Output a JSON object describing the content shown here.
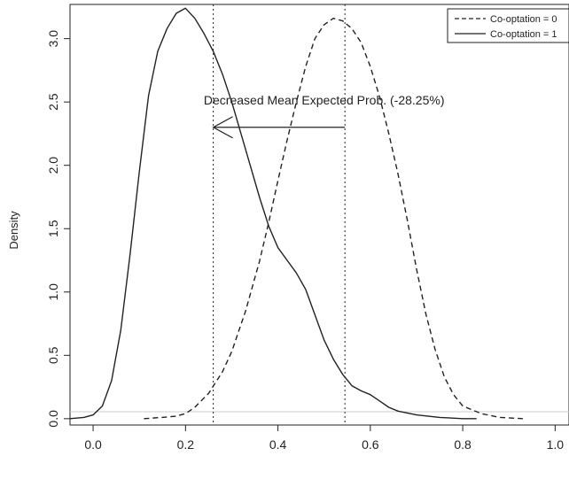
{
  "chart_data": {
    "type": "line",
    "title": "",
    "xlabel": "",
    "ylabel": "Density",
    "xlim": [
      -0.05,
      1.03
    ],
    "ylim": [
      -0.05,
      3.27
    ],
    "x_ticks": [
      "0.0",
      "0.2",
      "0.4",
      "0.6",
      "0.8",
      "1.0"
    ],
    "y_ticks": [
      "0.0",
      "0.5",
      "1.0",
      "1.5",
      "2.0",
      "2.5",
      "3.0"
    ],
    "legend": {
      "position": "top-right",
      "entries": [
        {
          "label": "Co-optation = 0",
          "linestyle": "dashed"
        },
        {
          "label": "Co-optation = 1",
          "linestyle": "solid"
        }
      ]
    },
    "series": [
      {
        "name": "Co-optation = 0",
        "linestyle": "dashed",
        "x": [
          0.11,
          0.15,
          0.18,
          0.2,
          0.22,
          0.25,
          0.28,
          0.3,
          0.33,
          0.36,
          0.38,
          0.4,
          0.42,
          0.44,
          0.46,
          0.48,
          0.5,
          0.52,
          0.54,
          0.56,
          0.58,
          0.6,
          0.62,
          0.64,
          0.66,
          0.68,
          0.7,
          0.72,
          0.74,
          0.76,
          0.78,
          0.8,
          0.84,
          0.88,
          0.93
        ],
        "y": [
          0.0,
          0.01,
          0.02,
          0.04,
          0.09,
          0.2,
          0.37,
          0.53,
          0.85,
          1.24,
          1.55,
          1.88,
          2.2,
          2.5,
          2.78,
          3.0,
          3.11,
          3.16,
          3.14,
          3.08,
          2.97,
          2.78,
          2.54,
          2.25,
          1.93,
          1.57,
          1.18,
          0.83,
          0.55,
          0.33,
          0.19,
          0.1,
          0.04,
          0.01,
          0.0
        ]
      },
      {
        "name": "Co-optation = 1",
        "linestyle": "solid",
        "x": [
          -0.05,
          -0.02,
          0.0,
          0.02,
          0.04,
          0.06,
          0.08,
          0.1,
          0.12,
          0.14,
          0.16,
          0.18,
          0.2,
          0.22,
          0.24,
          0.26,
          0.28,
          0.3,
          0.32,
          0.34,
          0.36,
          0.38,
          0.4,
          0.42,
          0.44,
          0.46,
          0.48,
          0.5,
          0.52,
          0.54,
          0.56,
          0.58,
          0.6,
          0.62,
          0.64,
          0.66,
          0.7,
          0.75,
          0.8,
          0.83
        ],
        "y": [
          0.0,
          0.01,
          0.03,
          0.1,
          0.3,
          0.7,
          1.3,
          1.95,
          2.55,
          2.9,
          3.08,
          3.2,
          3.24,
          3.16,
          3.04,
          2.9,
          2.72,
          2.5,
          2.25,
          2.0,
          1.75,
          1.52,
          1.35,
          1.25,
          1.15,
          1.02,
          0.82,
          0.62,
          0.47,
          0.35,
          0.26,
          0.22,
          0.19,
          0.14,
          0.09,
          0.06,
          0.03,
          0.01,
          0.0,
          0.0
        ]
      }
    ],
    "vlines": [
      {
        "x": 0.26,
        "linestyle": "dotted"
      },
      {
        "x": 0.545,
        "linestyle": "dotted"
      }
    ],
    "annotation": {
      "text": "Decreased Mean Expected Prob. (-28.25%)",
      "x": 0.5,
      "y": 2.48
    },
    "arrow": {
      "from_x": 0.545,
      "to_x": 0.26,
      "y": 2.3
    },
    "grid": false
  }
}
